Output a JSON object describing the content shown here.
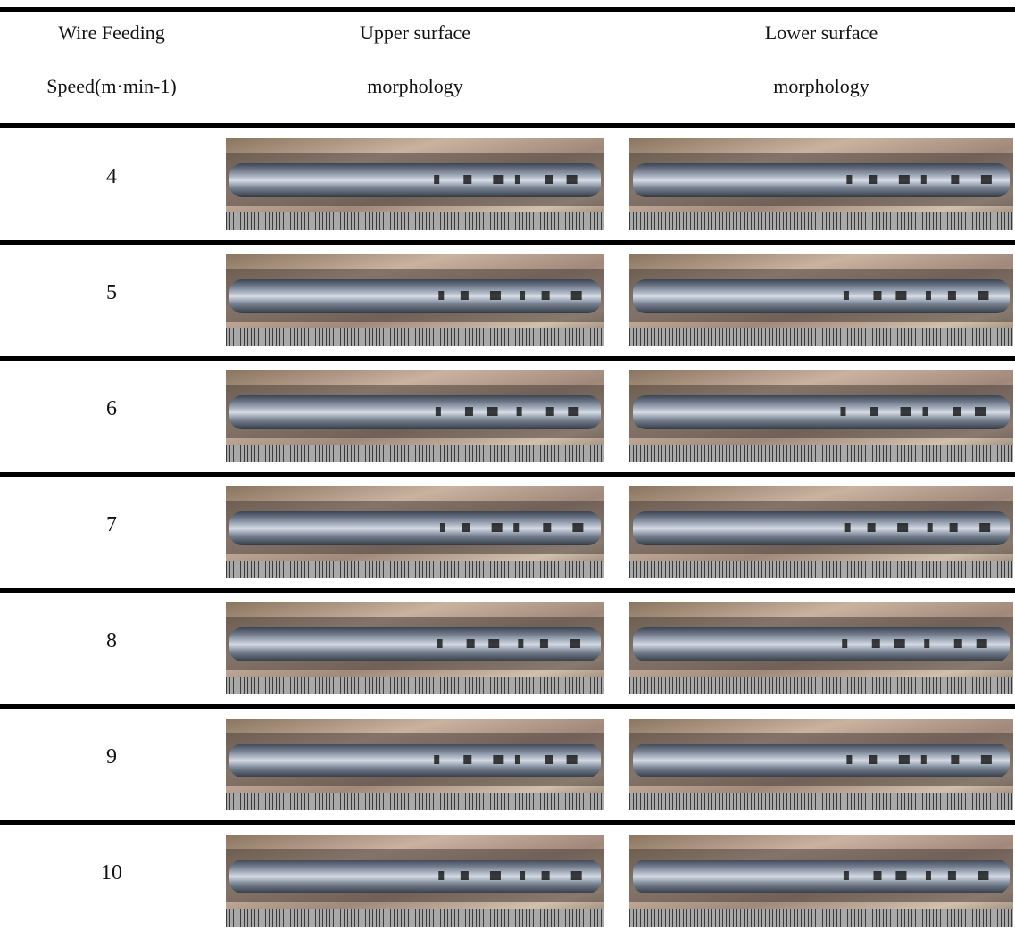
{
  "table": {
    "header": [
      [
        "Wire Feeding",
        "Speed(m·min-1)"
      ],
      [
        "Upper surface",
        "morphology"
      ],
      [
        "Lower surface",
        "morphology"
      ]
    ],
    "rows": [
      4,
      5,
      6,
      7,
      8,
      9,
      10
    ]
  }
}
